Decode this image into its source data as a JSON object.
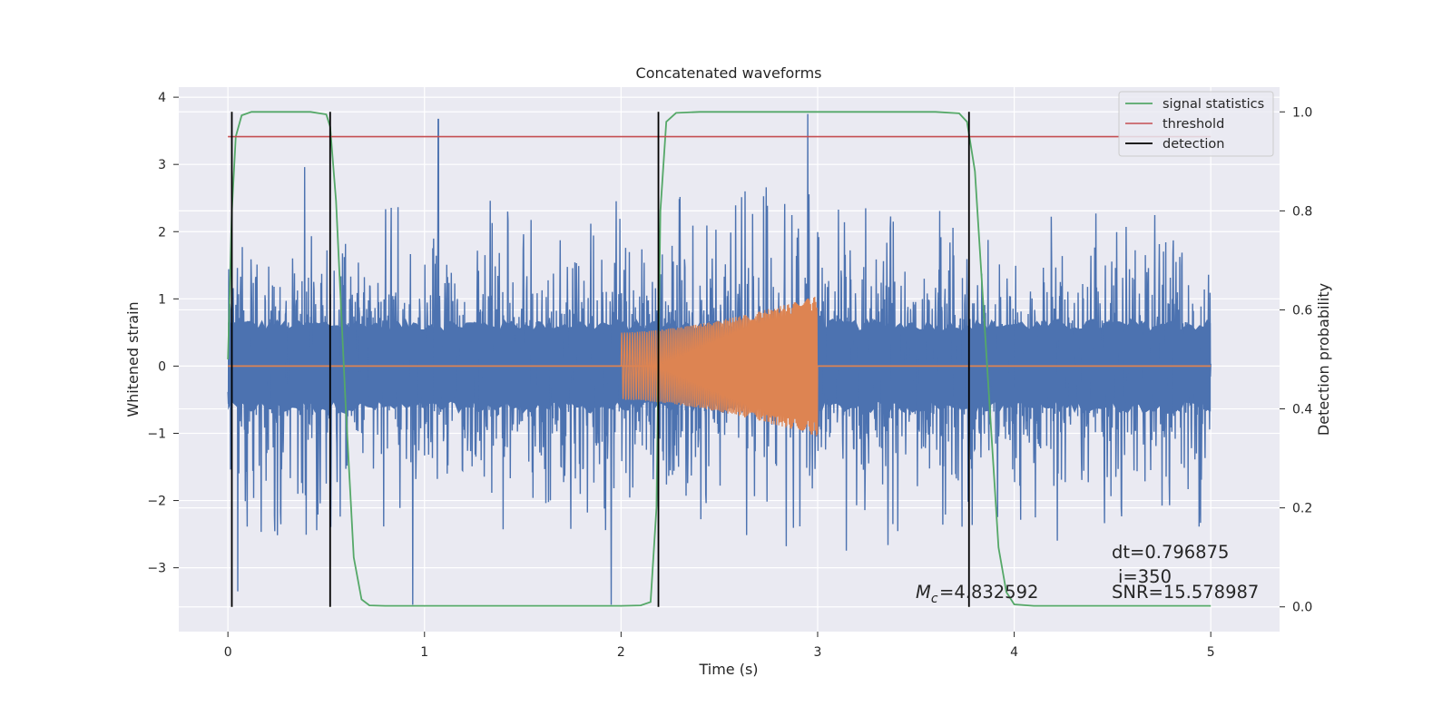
{
  "chart_data": {
    "type": "line",
    "title": "Concatenated waveforms",
    "xlabel": "Time (s)",
    "ylabel_left": "Whitened strain",
    "ylabel_right": "Detection probability",
    "xlim": [
      -0.25,
      5.35
    ],
    "ylim_left": [
      -3.95,
      4.15
    ],
    "ylim_right": [
      -0.05,
      1.05
    ],
    "xticks": [
      "0",
      "1",
      "2",
      "3",
      "4",
      "5"
    ],
    "yticks_left": [
      "−3",
      "−2",
      "−1",
      "0",
      "1",
      "2",
      "3",
      "4"
    ],
    "yticks_right": [
      "0.0",
      "0.2",
      "0.4",
      "0.6",
      "0.8",
      "1.0"
    ],
    "grid": true,
    "legend_position": "top-right",
    "colors": {
      "strain": "#4c72b0",
      "template": "#dd8452",
      "signal_statistics": "#55a868",
      "threshold": "#c44e52",
      "detection": "#000000",
      "plot_background": "#eaeaf2",
      "grid": "#ffffff"
    },
    "series": [
      {
        "name": "signal statistics",
        "axis": "right",
        "x": [
          0.0,
          0.02,
          0.04,
          0.07,
          0.12,
          0.2,
          0.3,
          0.42,
          0.5,
          0.52,
          0.55,
          0.6,
          0.64,
          0.68,
          0.72,
          0.8,
          1.2,
          1.6,
          2.0,
          2.1,
          2.15,
          2.18,
          2.2,
          2.23,
          2.28,
          2.4,
          2.8,
          3.2,
          3.6,
          3.72,
          3.76,
          3.8,
          3.86,
          3.92,
          3.96,
          4.0,
          4.1,
          4.5,
          5.0
        ],
        "y": [
          0.5,
          0.8,
          0.95,
          0.993,
          1.0,
          1.0,
          1.0,
          1.0,
          0.995,
          0.97,
          0.82,
          0.4,
          0.1,
          0.015,
          0.003,
          0.002,
          0.002,
          0.002,
          0.002,
          0.003,
          0.01,
          0.2,
          0.8,
          0.98,
          0.998,
          1.0,
          1.0,
          1.0,
          1.0,
          0.997,
          0.98,
          0.88,
          0.5,
          0.12,
          0.03,
          0.005,
          0.002,
          0.002,
          0.002
        ]
      },
      {
        "name": "threshold",
        "axis": "right",
        "x": [
          0.0,
          5.0
        ],
        "y": [
          0.95,
          0.95
        ]
      },
      {
        "name": "detection",
        "axis": "right",
        "type": "vlines",
        "x": [
          0.02,
          0.52,
          2.19,
          3.77
        ],
        "y_range": [
          0.0,
          1.0
        ]
      }
    ],
    "strain": {
      "axis": "left",
      "x_range": [
        0.0,
        5.0
      ],
      "core_amplitude": 0.62,
      "peak_envelope": {
        "x": [
          0.0,
          1.0,
          2.0,
          3.0,
          4.0,
          5.0
        ],
        "max": [
          2.3,
          2.4,
          2.6,
          2.7,
          2.4,
          2.2
        ],
        "min": [
          -2.6,
          -2.4,
          -2.6,
          -2.9,
          -2.6,
          -2.8
        ]
      },
      "notable_spikes": [
        {
          "x": 1.07,
          "y": 3.67
        },
        {
          "x": 2.95,
          "y": 3.75
        },
        {
          "x": 0.39,
          "y": 2.96
        },
        {
          "x": 0.94,
          "y": -3.55
        },
        {
          "x": 1.95,
          "y": -3.55
        },
        {
          "x": 0.05,
          "y": -3.35
        }
      ]
    },
    "template": {
      "axis": "left",
      "x_range": [
        0.0,
        5.0
      ],
      "chirp_start": 2.0,
      "chirp_end": 3.0,
      "amplitude_start": 0.5,
      "amplitude_end": 1.05
    },
    "annotations": {
      "mc": "=4.832592",
      "dt": "dt=0.796875",
      "i": "i=350",
      "snr": "SNR=15.578987"
    }
  }
}
